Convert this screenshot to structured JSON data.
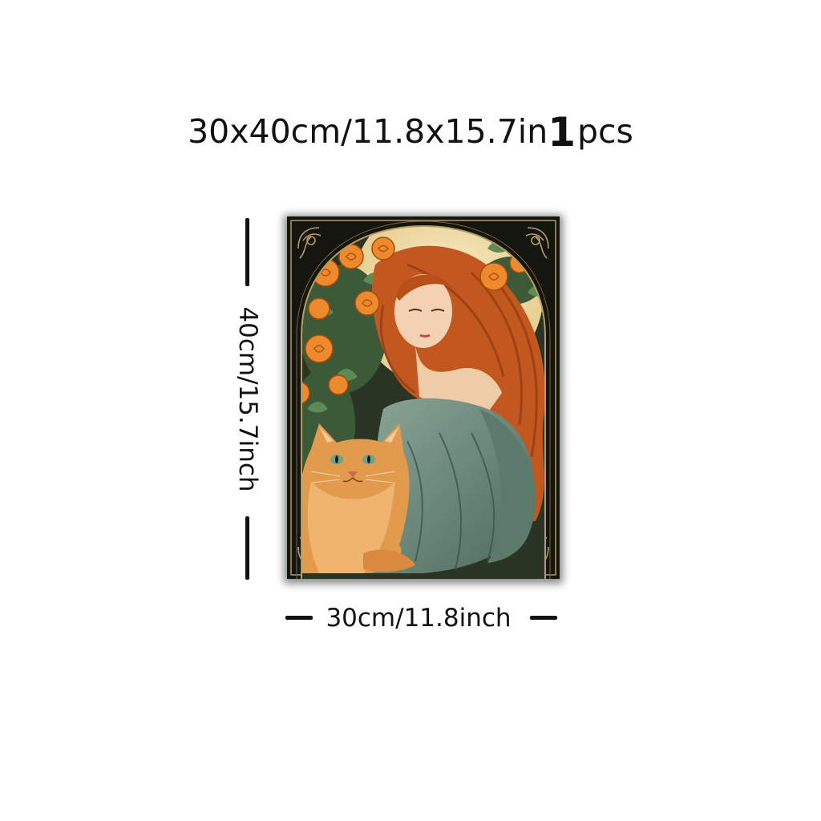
{
  "heading": {
    "size_text": "30x40cm/11.8x15.7in",
    "quantity_number": "1",
    "quantity_unit": "pcs"
  },
  "height_label": "40cm/15.7inch",
  "width_label": "30cm/11.8inch",
  "colors": {
    "frame": "#151510",
    "ornament": "#b49a63",
    "hair": "#c2581f",
    "roses": "#ee8a2e",
    "drapery": "#6e8d7b",
    "cat": "#e29a4c",
    "moon": "#f3e2b2"
  }
}
